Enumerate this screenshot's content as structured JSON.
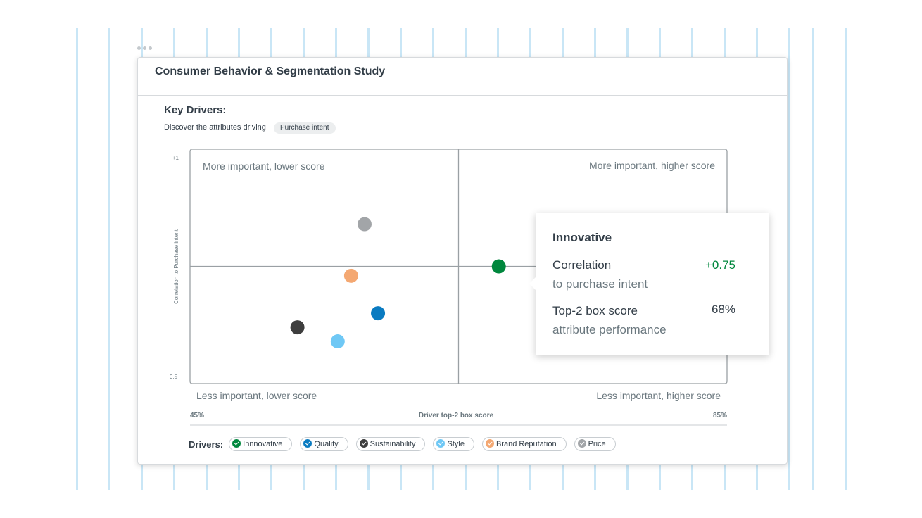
{
  "header": {
    "title": "Consumer Behavior & Segmentation Study"
  },
  "section": {
    "title": "Key Drivers:",
    "subtitle": "Discover the attributes driving",
    "tag": "Purchase intent"
  },
  "chart_data": {
    "type": "scatter",
    "xlabel": "Driver top-2 box score",
    "ylabel": "Correlation to Purchase intent",
    "xlim": [
      45,
      85
    ],
    "ylim": [
      0.5,
      1.0
    ],
    "x_tick_labels": [
      "45%",
      "85%"
    ],
    "y_tick_labels": [
      "+1",
      "+0.5"
    ],
    "quadrants": {
      "top_left": "More important, lower score",
      "top_right": "More important, higher score",
      "bottom_left": "Less important, lower score",
      "bottom_right": "Less important, higher score"
    },
    "series": [
      {
        "name": "Innnovative",
        "color": "#00873d",
        "x": 68,
        "y": 0.75
      },
      {
        "name": "Quality",
        "color": "#0a7bc1",
        "x": 59,
        "y": 0.65
      },
      {
        "name": "Sustainability",
        "color": "#3e3e3e",
        "x": 53,
        "y": 0.62
      },
      {
        "name": "Style",
        "color": "#6fc8f5",
        "x": 56,
        "y": 0.59
      },
      {
        "name": "Brand Reputation",
        "color": "#f4a872",
        "x": 57,
        "y": 0.73
      },
      {
        "name": "Price",
        "color": "#a2a5a8",
        "x": 58,
        "y": 0.84
      }
    ]
  },
  "tooltip": {
    "title": "Innovative",
    "rows": [
      {
        "label": "Correlation",
        "sublabel": "to purchase intent",
        "value": "+0.75"
      },
      {
        "label": "Top-2 box score",
        "sublabel": "attribute performance",
        "value": "68%"
      }
    ]
  },
  "legend": {
    "label": "Drivers:"
  }
}
